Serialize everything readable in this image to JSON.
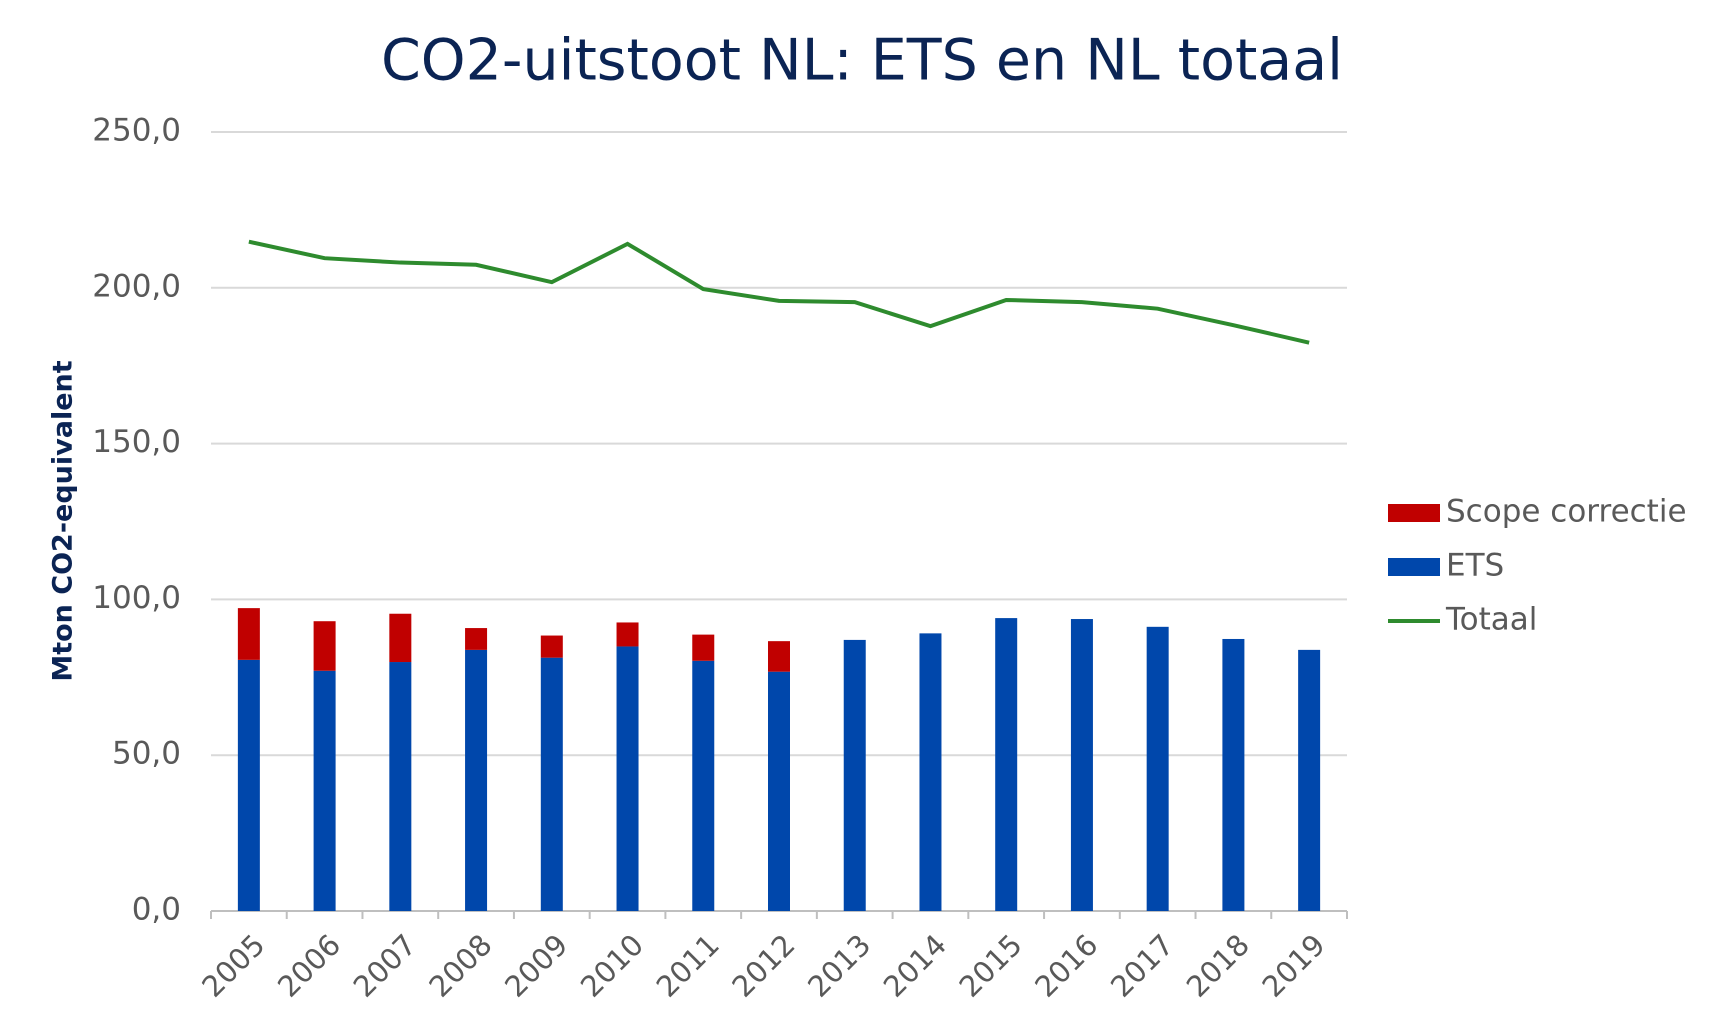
{
  "chart_data": {
    "type": "bar-line",
    "title": "CO2-uitstoot NL: ETS en NL totaal",
    "y_label": "Mton CO2-equivalent",
    "categories": [
      "2005",
      "2006",
      "2007",
      "2008",
      "2009",
      "2010",
      "2011",
      "2012",
      "2013",
      "2014",
      "2015",
      "2016",
      "2017",
      "2018",
      "2019"
    ],
    "series": [
      {
        "name": "Scope correctie",
        "kind": "bar",
        "color": "#c00000",
        "values": [
          16.6,
          15.9,
          15.5,
          7.0,
          7.1,
          7.7,
          8.4,
          9.8,
          null,
          null,
          null,
          null,
          null,
          null,
          null
        ]
      },
      {
        "name": "ETS",
        "kind": "bar",
        "color": "#0047ab",
        "values": [
          80.6,
          77.1,
          79.9,
          83.8,
          81.3,
          84.9,
          80.3,
          76.8,
          87.0,
          89.1,
          94.0,
          93.7,
          91.2,
          87.3,
          83.8
        ]
      },
      {
        "name": "Totaal",
        "kind": "line",
        "color": "#2e8b2e",
        "values": [
          214.8,
          209.5,
          208.1,
          207.4,
          201.8,
          214.1,
          199.6,
          195.8,
          195.4,
          187.7,
          196.1,
          195.4,
          193.3,
          188.0,
          182.4
        ]
      }
    ],
    "ylim": [
      0,
      250
    ],
    "yticks": [
      {
        "value": 0,
        "label": "0,0"
      },
      {
        "value": 50,
        "label": "50,0"
      },
      {
        "value": 100,
        "label": "100,0"
      },
      {
        "value": 150,
        "label": "150,0"
      },
      {
        "value": 200,
        "label": "200,0"
      },
      {
        "value": 250,
        "label": "250,0"
      }
    ],
    "grid": true,
    "legend": "right"
  }
}
